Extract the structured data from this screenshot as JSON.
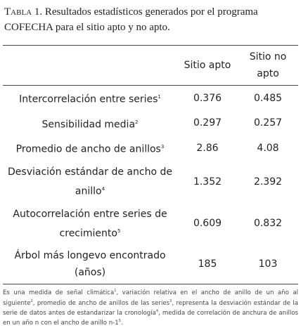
{
  "header": {
    "label": "Tabla 1.",
    "title": "Resultados estadísticos generados por el programa COFECHA para el sitio apto y no apto."
  },
  "table": {
    "columns": [
      "Sitio apto",
      "Sitio no apto"
    ],
    "rows": [
      {
        "label": "Intercorrelación entre series",
        "sup": "1",
        "values": [
          0.376,
          0.485
        ]
      },
      {
        "label": "Sensibilidad media",
        "sup": "2",
        "values": [
          0.297,
          0.257
        ]
      },
      {
        "label": "Promedio de ancho de anillos",
        "sup": "3",
        "values": [
          2.86,
          4.08
        ]
      },
      {
        "label": "Desviación estándar de ancho de anillo",
        "sup": "4",
        "values": [
          1.352,
          2.392
        ]
      },
      {
        "label": "Autocorrelación entre series de crecimiento",
        "sup": "5",
        "values": [
          0.609,
          0.832
        ]
      },
      {
        "label": "Árbol más longevo encontrado (años)",
        "sup": null,
        "values": [
          185,
          103
        ]
      }
    ]
  },
  "footnote": [
    {
      "text": "Es una medida de señal climática",
      "sup": "1"
    },
    {
      "text": ", variación relativa en el ancho de anillo de un año al siguiente",
      "sup": "2"
    },
    {
      "text": ", promedio de ancho de anillos de las series",
      "sup": "3"
    },
    {
      "text": ", representa la desviación estándar de la serie de datos antes de estandarizar la cronología",
      "sup": "4"
    },
    {
      "text": ", medida de correlación de anchura de anillos en un año n con el ancho de anillo n-1",
      "sup": "5"
    },
    {
      "text": ".",
      "sup": null
    }
  ]
}
